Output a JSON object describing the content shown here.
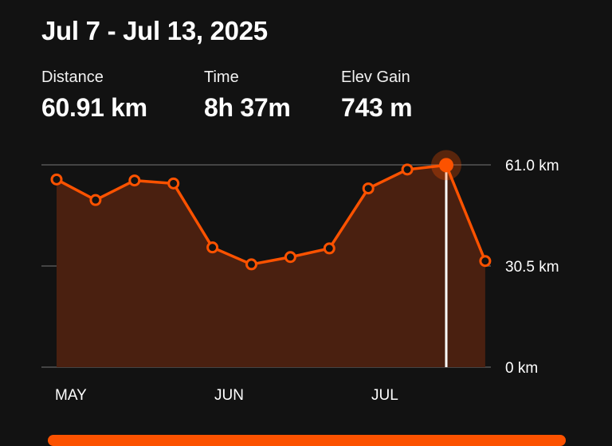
{
  "header": {
    "title": "Jul 7 - Jul 13, 2025"
  },
  "stats": [
    {
      "label": "Distance",
      "value": "60.91 km"
    },
    {
      "label": "Time",
      "value": "8h 37m"
    },
    {
      "label": "Elev Gain",
      "value": "743 m"
    }
  ],
  "colors": {
    "accent": "#fc5200",
    "area_fill": "#4a2010",
    "gridline": "#555555",
    "selection_line": "#ffffff",
    "background": "#121212"
  },
  "chart_data": {
    "type": "area",
    "y_unit": "km",
    "ylim": [
      0,
      61.0
    ],
    "y_ticks": [
      {
        "value": 61.0,
        "label": "61.0 km"
      },
      {
        "value": 30.5,
        "label": "30.5 km"
      },
      {
        "value": 0,
        "label": "0 km"
      }
    ],
    "x_month_labels": [
      "MAY",
      "JUN",
      "JUL"
    ],
    "values": [
      56.6,
      50.4,
      56.3,
      55.4,
      36.1,
      31.0,
      33.2,
      35.8,
      53.9,
      59.6,
      60.91,
      32.0
    ],
    "selected_index": 10,
    "grid": true
  }
}
